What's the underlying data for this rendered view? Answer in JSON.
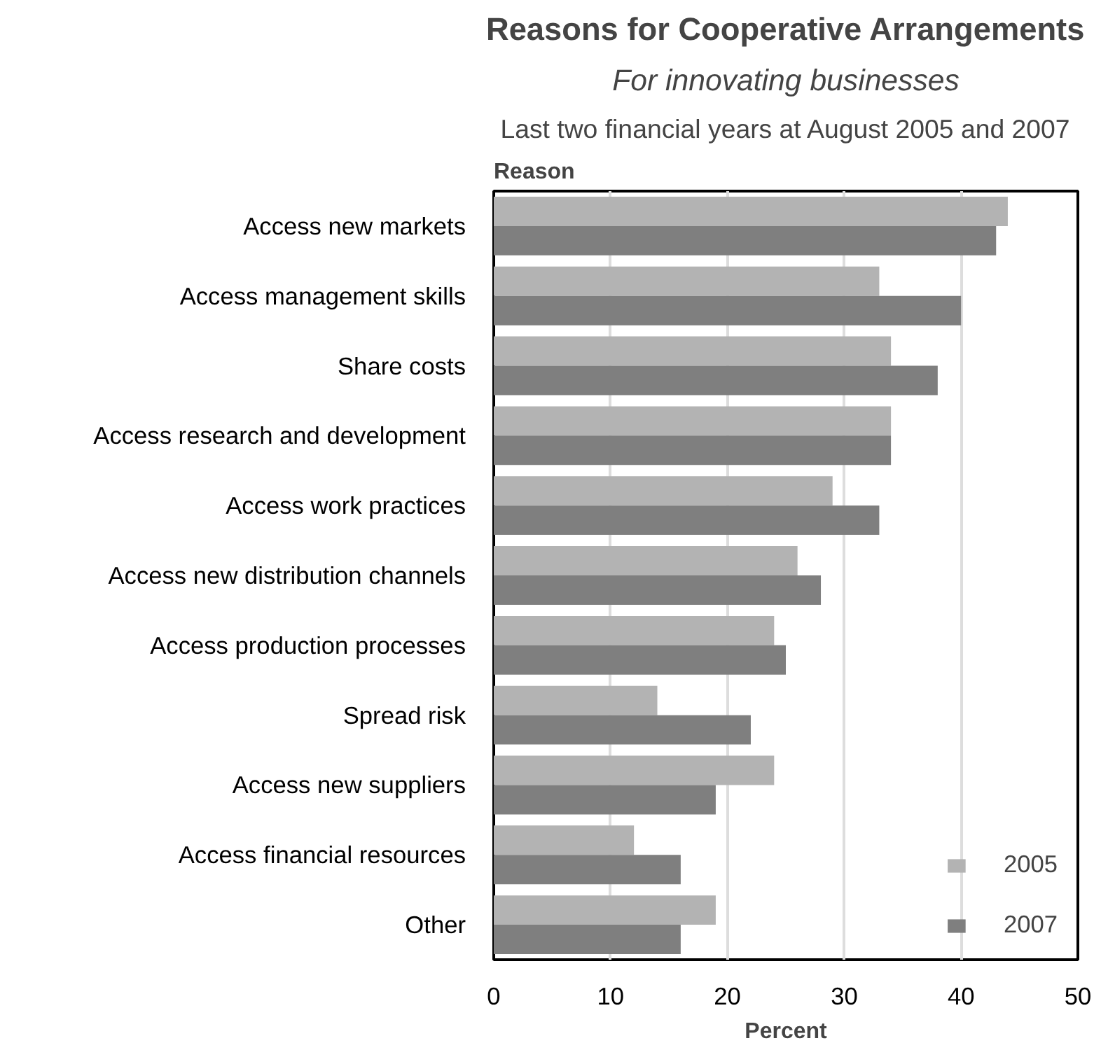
{
  "chart_data": {
    "type": "bar",
    "orientation": "horizontal",
    "title": "Reasons for Cooperative Arrangements",
    "subtitle": "For innovating businesses",
    "annotations": [
      "Last two financial years at August 2005 and 2007"
    ],
    "ylabel": "Reason",
    "xlabel": "Percent",
    "categories": [
      "Access new markets",
      "Access management skills",
      "Share costs",
      "Access research and development",
      "Access work practices",
      "Access new distribution channels",
      "Access production processes",
      "Spread risk",
      "Access new suppliers",
      "Access financial resources",
      "Other"
    ],
    "series": [
      {
        "name": "2005",
        "color": "#b3b3b3",
        "values": [
          44,
          33,
          34,
          34,
          29,
          26,
          24,
          14,
          24,
          12,
          19
        ]
      },
      {
        "name": "2007",
        "color": "#7f7f7f",
        "values": [
          43,
          40,
          38,
          34,
          33,
          28,
          25,
          22,
          19,
          16,
          16
        ]
      }
    ],
    "xlim": [
      0,
      50
    ],
    "xticks": [
      0,
      10,
      20,
      30,
      40,
      50
    ],
    "grid": "x",
    "legend": "bottom right"
  }
}
